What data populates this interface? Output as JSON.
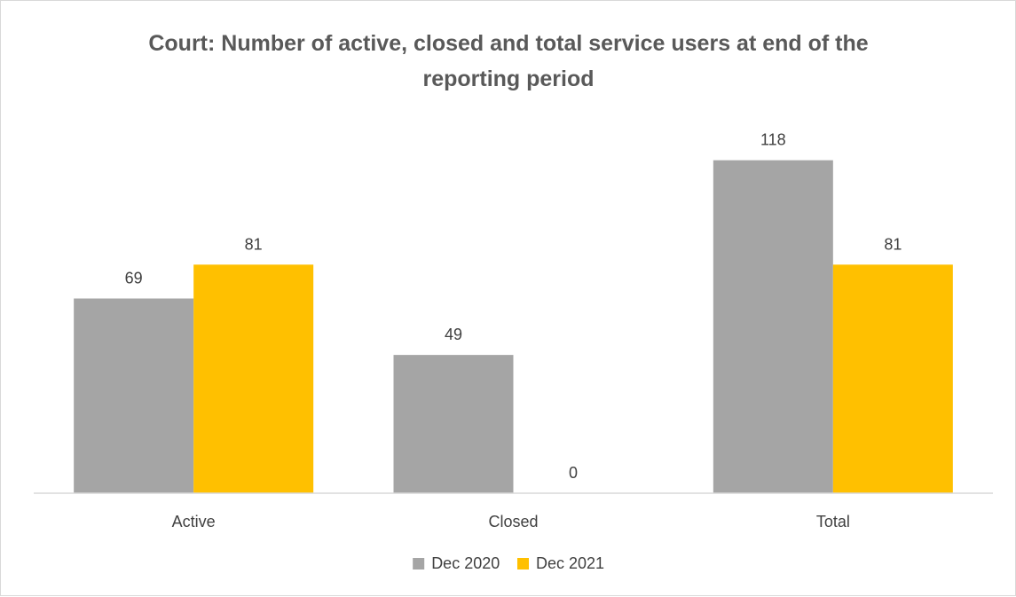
{
  "chart_data": {
    "type": "bar",
    "title_lines": [
      "Court: Number of active, closed and total service users at end of the",
      "reporting period"
    ],
    "categories": [
      "Active",
      "Closed",
      "Total"
    ],
    "series": [
      {
        "name": "Dec 2020",
        "values": [
          69,
          49,
          118
        ],
        "color": "#a5a5a5"
      },
      {
        "name": "Dec 2021",
        "values": [
          81,
          0,
          81
        ],
        "color": "#ffc000"
      }
    ],
    "ylim": [
      0,
      138
    ],
    "grid": false,
    "legend_position": "bottom-center"
  }
}
